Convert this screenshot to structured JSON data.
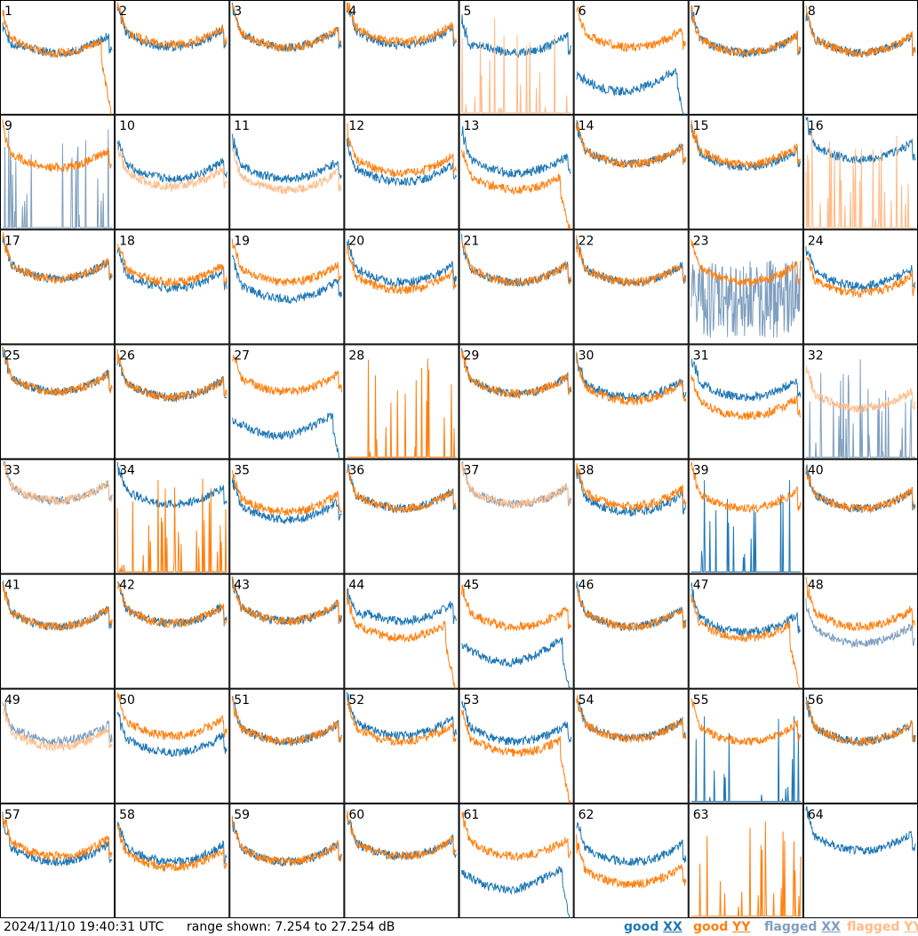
{
  "chart_data": {
    "type": "line",
    "panels": [
      {
        "label": "1",
        "xx": "good",
        "yy": "good",
        "xx_level": 0.55,
        "yy_level": 0.55,
        "xx_shape": "rise",
        "yy_shape": "rolloff"
      },
      {
        "label": "2",
        "xx": "good",
        "yy": "good",
        "xx_level": 0.6,
        "yy_level": 0.62,
        "xx_shape": "bowl",
        "yy_shape": "bowl"
      },
      {
        "label": "3",
        "xx": "good",
        "yy": "good",
        "xx_level": 0.6,
        "yy_level": 0.6,
        "xx_shape": "bowl",
        "yy_shape": "bowl"
      },
      {
        "label": "4",
        "xx": "good",
        "yy": "good",
        "xx_level": 0.62,
        "yy_level": 0.65,
        "xx_shape": "bowl",
        "yy_shape": "bowl"
      },
      {
        "label": "5",
        "xx": "good",
        "yy": "flagged",
        "xx_level": 0.55,
        "yy_level": 0.0,
        "xx_shape": "rise",
        "yy_shape": "spikes"
      },
      {
        "label": "6",
        "xx": "good",
        "yy": "good",
        "xx_level": 0.35,
        "yy_level": 0.6,
        "xx_shape": "dip",
        "yy_shape": "bowl"
      },
      {
        "label": "7",
        "xx": "good",
        "yy": "good",
        "xx_level": 0.55,
        "yy_level": 0.55,
        "xx_shape": "bowl",
        "yy_shape": "bowl"
      },
      {
        "label": "8",
        "xx": "good",
        "yy": "good",
        "xx_level": 0.55,
        "yy_level": 0.55,
        "xx_shape": "bowl",
        "yy_shape": "bowl"
      },
      {
        "label": "9",
        "xx": "flagged",
        "yy": "good",
        "xx_level": 0.0,
        "yy_level": 0.55,
        "xx_shape": "spikes",
        "yy_shape": "bowl"
      },
      {
        "label": "10",
        "xx": "good",
        "yy": "flagged",
        "xx_level": 0.45,
        "yy_level": 0.38,
        "xx_shape": "bowl",
        "yy_shape": "bowl"
      },
      {
        "label": "11",
        "xx": "good",
        "yy": "flagged",
        "xx_level": 0.45,
        "yy_level": 0.35,
        "xx_shape": "bowl",
        "yy_shape": "bowl"
      },
      {
        "label": "12",
        "xx": "good",
        "yy": "good",
        "xx_level": 0.42,
        "yy_level": 0.5,
        "xx_shape": "bowl",
        "yy_shape": "bowl"
      },
      {
        "label": "13",
        "xx": "good",
        "yy": "good",
        "xx_level": 0.5,
        "yy_level": 0.35,
        "xx_shape": "bowl",
        "yy_shape": "rolloff"
      },
      {
        "label": "14",
        "xx": "good",
        "yy": "good",
        "xx_level": 0.58,
        "yy_level": 0.58,
        "xx_shape": "bowl",
        "yy_shape": "bowl"
      },
      {
        "label": "15",
        "xx": "good",
        "yy": "good",
        "xx_level": 0.55,
        "yy_level": 0.58,
        "xx_shape": "bowl",
        "yy_shape": "bowl"
      },
      {
        "label": "16",
        "xx": "good",
        "yy": "flagged",
        "xx_level": 0.62,
        "yy_level": 0.0,
        "xx_shape": "bowl",
        "yy_shape": "spikes"
      },
      {
        "label": "17",
        "xx": "good",
        "yy": "good",
        "xx_level": 0.58,
        "yy_level": 0.58,
        "xx_shape": "bowl",
        "yy_shape": "bowl"
      },
      {
        "label": "18",
        "xx": "good",
        "yy": "good",
        "xx_level": 0.5,
        "yy_level": 0.55,
        "xx_shape": "bowl",
        "yy_shape": "bowl"
      },
      {
        "label": "19",
        "xx": "good",
        "yy": "good",
        "xx_level": 0.4,
        "yy_level": 0.55,
        "xx_shape": "bowl",
        "yy_shape": "bowl"
      },
      {
        "label": "20",
        "xx": "good",
        "yy": "good",
        "xx_level": 0.55,
        "yy_level": 0.48,
        "xx_shape": "bowl",
        "yy_shape": "bowl"
      },
      {
        "label": "21",
        "xx": "good",
        "yy": "good",
        "xx_level": 0.55,
        "yy_level": 0.55,
        "xx_shape": "bowl",
        "yy_shape": "bowl"
      },
      {
        "label": "22",
        "xx": "good",
        "yy": "good",
        "xx_level": 0.55,
        "yy_level": 0.55,
        "xx_shape": "bowl",
        "yy_shape": "bowl"
      },
      {
        "label": "23",
        "xx": "flagged",
        "yy": "good",
        "xx_level": 0.2,
        "yy_level": 0.55,
        "xx_shape": "noise",
        "yy_shape": "bowl"
      },
      {
        "label": "24",
        "xx": "good",
        "yy": "good",
        "xx_level": 0.52,
        "yy_level": 0.45,
        "xx_shape": "bowl",
        "yy_shape": "bowl"
      },
      {
        "label": "25",
        "xx": "good",
        "yy": "good",
        "xx_level": 0.6,
        "yy_level": 0.6,
        "xx_shape": "bowl",
        "yy_shape": "bowl"
      },
      {
        "label": "26",
        "xx": "good",
        "yy": "good",
        "xx_level": 0.55,
        "yy_level": 0.55,
        "xx_shape": "bowl",
        "yy_shape": "bowl"
      },
      {
        "label": "27",
        "xx": "good",
        "yy": "good",
        "xx_level": 0.35,
        "yy_level": 0.6,
        "xx_shape": "dip",
        "yy_shape": "bowl"
      },
      {
        "label": "28",
        "xx": "flagged",
        "yy": "good",
        "xx_level": 0.0,
        "yy_level": 0.0,
        "xx_shape": "none",
        "yy_shape": "spikes"
      },
      {
        "label": "29",
        "xx": "good",
        "yy": "good",
        "xx_level": 0.58,
        "yy_level": 0.58,
        "xx_shape": "bowl",
        "yy_shape": "bowl"
      },
      {
        "label": "30",
        "xx": "good",
        "yy": "good",
        "xx_level": 0.55,
        "yy_level": 0.52,
        "xx_shape": "bowl",
        "yy_shape": "bowl"
      },
      {
        "label": "31",
        "xx": "good",
        "yy": "good",
        "xx_level": 0.55,
        "yy_level": 0.38,
        "xx_shape": "bowl",
        "yy_shape": "bowl"
      },
      {
        "label": "32",
        "xx": "flagged",
        "yy": "flagged",
        "xx_level": 0.0,
        "yy_level": 0.45,
        "xx_shape": "spikes",
        "yy_shape": "bowl"
      },
      {
        "label": "33",
        "xx": "flagged",
        "yy": "flagged",
        "xx_level": 0.65,
        "yy_level": 0.65,
        "xx_shape": "bowl",
        "yy_shape": "bowl"
      },
      {
        "label": "34",
        "xx": "good",
        "yy": "good",
        "xx_level": 0.62,
        "yy_level": 0.0,
        "xx_shape": "bowl",
        "yy_shape": "spikes"
      },
      {
        "label": "35",
        "xx": "good",
        "yy": "good",
        "xx_level": 0.48,
        "yy_level": 0.55,
        "xx_shape": "bowl",
        "yy_shape": "bowl"
      },
      {
        "label": "36",
        "xx": "good",
        "yy": "good",
        "xx_level": 0.58,
        "yy_level": 0.58,
        "xx_shape": "bowl",
        "yy_shape": "bowl"
      },
      {
        "label": "37",
        "xx": "flagged",
        "yy": "flagged",
        "xx_level": 0.62,
        "yy_level": 0.62,
        "xx_shape": "bowl",
        "yy_shape": "bowl"
      },
      {
        "label": "38",
        "xx": "good",
        "yy": "good",
        "xx_level": 0.55,
        "yy_level": 0.6,
        "xx_shape": "bowl",
        "yy_shape": "bowl"
      },
      {
        "label": "39",
        "xx": "good",
        "yy": "good",
        "xx_level": 0.0,
        "yy_level": 0.58,
        "xx_shape": "spikes",
        "yy_shape": "bowl"
      },
      {
        "label": "40",
        "xx": "good",
        "yy": "good",
        "xx_level": 0.58,
        "yy_level": 0.58,
        "xx_shape": "bowl",
        "yy_shape": "bowl"
      },
      {
        "label": "41",
        "xx": "good",
        "yy": "good",
        "xx_level": 0.55,
        "yy_level": 0.55,
        "xx_shape": "bowl",
        "yy_shape": "bowl"
      },
      {
        "label": "42",
        "xx": "good",
        "yy": "good",
        "xx_level": 0.58,
        "yy_level": 0.58,
        "xx_shape": "bowl",
        "yy_shape": "bowl"
      },
      {
        "label": "43",
        "xx": "good",
        "yy": "good",
        "xx_level": 0.6,
        "yy_level": 0.6,
        "xx_shape": "bowl",
        "yy_shape": "bowl"
      },
      {
        "label": "44",
        "xx": "good",
        "yy": "good",
        "xx_level": 0.6,
        "yy_level": 0.45,
        "xx_shape": "rise",
        "yy_shape": "rolloff"
      },
      {
        "label": "45",
        "xx": "good",
        "yy": "good",
        "xx_level": 0.38,
        "yy_level": 0.55,
        "xx_shape": "dip",
        "yy_shape": "bowl"
      },
      {
        "label": "46",
        "xx": "good",
        "yy": "good",
        "xx_level": 0.55,
        "yy_level": 0.55,
        "xx_shape": "bowl",
        "yy_shape": "bowl"
      },
      {
        "label": "47",
        "xx": "good",
        "yy": "good",
        "xx_level": 0.5,
        "yy_level": 0.45,
        "xx_shape": "bowl",
        "yy_shape": "rolloff"
      },
      {
        "label": "48",
        "xx": "flagged",
        "yy": "good",
        "xx_level": 0.4,
        "yy_level": 0.55,
        "xx_shape": "bowl",
        "yy_shape": "bowl"
      },
      {
        "label": "49",
        "xx": "flagged",
        "yy": "flagged",
        "xx_level": 0.55,
        "yy_level": 0.5,
        "xx_shape": "bowl",
        "yy_shape": "bowl"
      },
      {
        "label": "50",
        "xx": "good",
        "yy": "good",
        "xx_level": 0.45,
        "yy_level": 0.6,
        "xx_shape": "bowl",
        "yy_shape": "bowl"
      },
      {
        "label": "51",
        "xx": "good",
        "yy": "good",
        "xx_level": 0.55,
        "yy_level": 0.55,
        "xx_shape": "bowl",
        "yy_shape": "bowl"
      },
      {
        "label": "52",
        "xx": "good",
        "yy": "good",
        "xx_level": 0.6,
        "yy_level": 0.55,
        "xx_shape": "bowl",
        "yy_shape": "bowl"
      },
      {
        "label": "53",
        "xx": "good",
        "yy": "good",
        "xx_level": 0.55,
        "yy_level": 0.45,
        "xx_shape": "bowl",
        "yy_shape": "rolloff"
      },
      {
        "label": "54",
        "xx": "good",
        "yy": "good",
        "xx_level": 0.58,
        "yy_level": 0.58,
        "xx_shape": "bowl",
        "yy_shape": "bowl"
      },
      {
        "label": "55",
        "xx": "good",
        "yy": "good",
        "xx_level": 0.0,
        "yy_level": 0.55,
        "xx_shape": "spikes",
        "yy_shape": "bowl"
      },
      {
        "label": "56",
        "xx": "good",
        "yy": "good",
        "xx_level": 0.55,
        "yy_level": 0.55,
        "xx_shape": "bowl",
        "yy_shape": "bowl"
      },
      {
        "label": "57",
        "xx": "good",
        "yy": "good",
        "xx_level": 0.5,
        "yy_level": 0.55,
        "xx_shape": "bowl",
        "yy_shape": "bowl"
      },
      {
        "label": "58",
        "xx": "good",
        "yy": "good",
        "xx_level": 0.5,
        "yy_level": 0.45,
        "xx_shape": "bowl",
        "yy_shape": "bowl"
      },
      {
        "label": "59",
        "xx": "good",
        "yy": "good",
        "xx_level": 0.5,
        "yy_level": 0.5,
        "xx_shape": "bowl",
        "yy_shape": "bowl"
      },
      {
        "label": "60",
        "xx": "good",
        "yy": "good",
        "xx_level": 0.55,
        "yy_level": 0.55,
        "xx_shape": "bowl",
        "yy_shape": "bowl"
      },
      {
        "label": "61",
        "xx": "good",
        "yy": "good",
        "xx_level": 0.4,
        "yy_level": 0.55,
        "xx_shape": "dip",
        "yy_shape": "bowl"
      },
      {
        "label": "62",
        "xx": "good",
        "yy": "good",
        "xx_level": 0.5,
        "yy_level": 0.3,
        "xx_shape": "bowl",
        "yy_shape": "bowl"
      },
      {
        "label": "63",
        "xx": "good",
        "yy": "good",
        "xx_level": 0.0,
        "yy_level": 0.0,
        "xx_shape": "none",
        "yy_shape": "spikes"
      },
      {
        "label": "64",
        "xx": "good",
        "yy": "good",
        "xx_level": 0.6,
        "yy_level": 0.0,
        "xx_shape": "bowl",
        "yy_shape": "none"
      }
    ],
    "range": {
      "min_db": 7.254,
      "max_db": 27.254
    }
  },
  "footer": {
    "timestamp": "2024/11/10 19:40:31 UTC",
    "range_text": "range shown: 7.254 to 27.254 dB"
  },
  "legend": {
    "good_xx": {
      "prefix": "good ",
      "pol": "XX",
      "color": "#1f77b4"
    },
    "good_yy": {
      "prefix": "good ",
      "pol": "YY",
      "color": "#ff7f0e"
    },
    "flagged_xx": {
      "prefix": "flagged ",
      "pol": "XX",
      "color": "#7f9fbf"
    },
    "flagged_yy": {
      "prefix": "flagged ",
      "pol": "YY",
      "color": "#ffbb88"
    }
  }
}
